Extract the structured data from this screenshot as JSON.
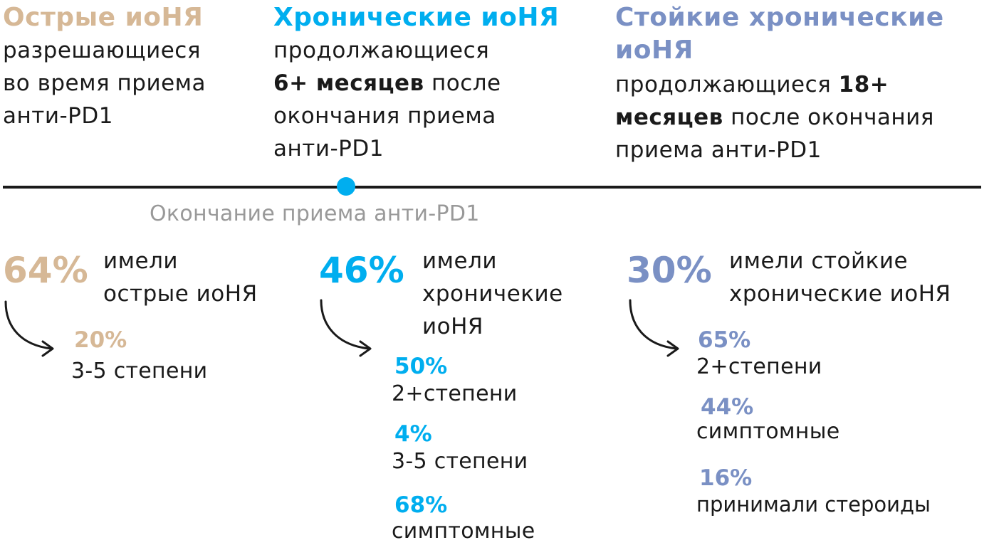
{
  "colors": {
    "acute": "#d6b896",
    "chronic": "#00aeef",
    "persistent": "#7a90c4",
    "text": "#1a1a1a",
    "muted": "#999999"
  },
  "columns": {
    "acute": {
      "title": "Острые иоНЯ",
      "desc": [
        "разрешающиеся",
        "во время приема",
        "анти-PD1"
      ],
      "stat_value": "64%",
      "stat_label": [
        "имели",
        "острые иоНЯ"
      ],
      "sub": [
        {
          "value": "20%",
          "label": "3-5 степени"
        }
      ]
    },
    "chronic": {
      "title": "Хронические иоНЯ",
      "desc_line1": "продолжающиеся",
      "desc_bold": "6+ месяцев",
      "desc_after_bold": " после",
      "desc_line3": "окончания приема",
      "desc_line4": "анти-PD1",
      "stat_value": "46%",
      "stat_label": [
        "имели",
        "хроничекие",
        "иоНЯ"
      ],
      "sub": [
        {
          "value": "50%",
          "label": "2+степени"
        },
        {
          "value": "4%",
          "label": "3-5 степени"
        },
        {
          "value": "68%",
          "label": "симптомные"
        }
      ]
    },
    "persistent": {
      "title_line1": "Стойкие хронические",
      "title_line2": "иоНЯ",
      "desc_line1_pre": "продолжающиеся ",
      "desc_line1_bold": "18+",
      "desc_line2_bold": "месяцев",
      "desc_line2_post": " после окончания",
      "desc_line3": "приема анти-PD1",
      "stat_value": "30%",
      "stat_label": [
        "имели стойкие",
        "хронические иоНЯ"
      ],
      "sub": [
        {
          "value": "65%",
          "label": "2+степени"
        },
        {
          "value": "44%",
          "label": "симптомные"
        },
        {
          "value": "16%",
          "label": "принимали стероиды"
        }
      ]
    }
  },
  "timeline": {
    "marker_label": "Окончание приема анти-PD1"
  }
}
